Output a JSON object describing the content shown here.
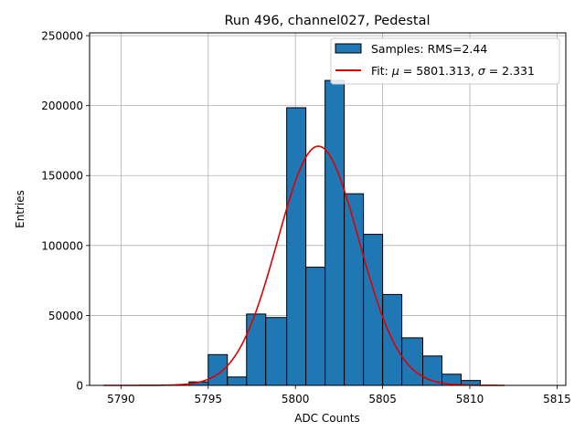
{
  "chart_data": {
    "type": "bar",
    "title": "Run 496, channel027, Pedestal",
    "xlabel": "ADC Counts",
    "ylabel": "Entries",
    "xlim": [
      5788.2,
      5815.5
    ],
    "ylim": [
      0,
      252000
    ],
    "grid": true,
    "legend_position": "top-right",
    "x_ticks": [
      5790,
      5795,
      5800,
      5805,
      5810,
      5815
    ],
    "y_ticks": [
      0,
      50000,
      100000,
      150000,
      200000,
      250000
    ],
    "histogram": {
      "name": "Samples: RMS=2.44",
      "color": "#1f77b4",
      "edge_color": "#000000",
      "bins": [
        {
          "x0": 5793.9,
          "x1": 5795.0,
          "value": 2500
        },
        {
          "x0": 5795.0,
          "x1": 5796.1,
          "value": 22000
        },
        {
          "x0": 5796.1,
          "x1": 5797.2,
          "value": 6000
        },
        {
          "x0": 5797.2,
          "x1": 5798.3,
          "value": 51000
        },
        {
          "x0": 5798.3,
          "x1": 5799.5,
          "value": 48500
        },
        {
          "x0": 5799.5,
          "x1": 5800.6,
          "value": 198500
        },
        {
          "x0": 5800.6,
          "x1": 5801.7,
          "value": 84500
        },
        {
          "x0": 5801.7,
          "x1": 5802.8,
          "value": 218000
        },
        {
          "x0": 5802.8,
          "x1": 5803.9,
          "value": 137000
        },
        {
          "x0": 5803.9,
          "x1": 5805.0,
          "value": 108000
        },
        {
          "x0": 5805.0,
          "x1": 5806.1,
          "value": 65000
        },
        {
          "x0": 5806.1,
          "x1": 5807.3,
          "value": 34000
        },
        {
          "x0": 5807.3,
          "x1": 5808.4,
          "value": 21000
        },
        {
          "x0": 5808.4,
          "x1": 5809.5,
          "value": 8000
        },
        {
          "x0": 5809.5,
          "x1": 5810.6,
          "value": 3500
        }
      ]
    },
    "fit": {
      "name": "Fit: μ = 5801.313, σ = 2.331",
      "label_parts": {
        "prefix": "Fit: ",
        "mu_symbol": "μ",
        "mu_value": " = 5801.313, ",
        "sigma_symbol": "σ",
        "sigma_value": " = 2.331"
      },
      "color": "#e00000",
      "mu": 5801.313,
      "sigma": 2.331,
      "peak": 171000,
      "x_range": [
        5789,
        5812
      ]
    }
  }
}
